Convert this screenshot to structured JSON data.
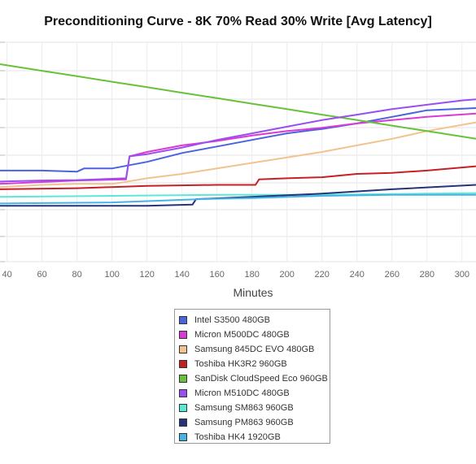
{
  "chart_data": {
    "type": "line",
    "title": "Preconditioning Curve - 8K 70% Read 30% Write [Avg Latency]",
    "xlabel": "Minutes",
    "ylabel": "",
    "xlim": [
      36,
      308
    ],
    "x_ticks": [
      40,
      60,
      80,
      100,
      120,
      140,
      160,
      180,
      200,
      220,
      240,
      260,
      280,
      300
    ],
    "ylim": [
      0,
      10
    ],
    "grid": true,
    "legend_position": "bottom-center",
    "series": [
      {
        "name": "Intel S3500 480GB",
        "color": "#4a63e0",
        "points": [
          [
            36,
            4.15
          ],
          [
            60,
            4.15
          ],
          [
            80,
            4.1
          ],
          [
            84,
            4.25
          ],
          [
            100,
            4.25
          ],
          [
            120,
            4.55
          ],
          [
            140,
            4.95
          ],
          [
            160,
            5.25
          ],
          [
            180,
            5.55
          ],
          [
            200,
            5.85
          ],
          [
            220,
            6.05
          ],
          [
            240,
            6.3
          ],
          [
            260,
            6.6
          ],
          [
            280,
            6.9
          ],
          [
            308,
            7.0
          ]
        ]
      },
      {
        "name": "Micron M500DC 480GB",
        "color": "#d93ad4",
        "points": [
          [
            36,
            3.55
          ],
          [
            80,
            3.7
          ],
          [
            108,
            3.75
          ],
          [
            110,
            4.8
          ],
          [
            120,
            5.0
          ],
          [
            140,
            5.3
          ],
          [
            160,
            5.5
          ],
          [
            180,
            5.75
          ],
          [
            200,
            5.95
          ],
          [
            220,
            6.1
          ],
          [
            240,
            6.3
          ],
          [
            260,
            6.45
          ],
          [
            280,
            6.6
          ],
          [
            308,
            6.75
          ]
        ]
      },
      {
        "name": "Samsung 845DC EVO 480GB",
        "color": "#f2c38e",
        "points": [
          [
            36,
            3.4
          ],
          [
            60,
            3.5
          ],
          [
            80,
            3.55
          ],
          [
            100,
            3.55
          ],
          [
            105,
            3.6
          ],
          [
            120,
            3.8
          ],
          [
            140,
            4.0
          ],
          [
            160,
            4.25
          ],
          [
            180,
            4.5
          ],
          [
            200,
            4.75
          ],
          [
            220,
            5.0
          ],
          [
            240,
            5.3
          ],
          [
            260,
            5.6
          ],
          [
            280,
            5.95
          ],
          [
            308,
            6.35
          ]
        ]
      },
      {
        "name": "Toshiba HK3R2 960GB",
        "color": "#c62026",
        "points": [
          [
            36,
            3.3
          ],
          [
            80,
            3.35
          ],
          [
            100,
            3.4
          ],
          [
            120,
            3.45
          ],
          [
            160,
            3.5
          ],
          [
            182,
            3.5
          ],
          [
            184,
            3.75
          ],
          [
            200,
            3.8
          ],
          [
            220,
            3.85
          ],
          [
            240,
            4.0
          ],
          [
            260,
            4.05
          ],
          [
            280,
            4.15
          ],
          [
            308,
            4.35
          ]
        ]
      },
      {
        "name": "SanDisk CloudSpeed Eco 960GB",
        "color": "#67c23a",
        "points": [
          [
            36,
            9.0
          ],
          [
            60,
            8.7
          ],
          [
            80,
            8.45
          ],
          [
            100,
            8.2
          ],
          [
            120,
            7.95
          ],
          [
            140,
            7.7
          ],
          [
            160,
            7.45
          ],
          [
            180,
            7.2
          ],
          [
            200,
            6.95
          ],
          [
            220,
            6.7
          ],
          [
            240,
            6.45
          ],
          [
            260,
            6.2
          ],
          [
            280,
            5.95
          ],
          [
            308,
            5.6
          ]
        ]
      },
      {
        "name": "Micron M510DC 480GB",
        "color": "#9b4ef0",
        "points": [
          [
            36,
            3.65
          ],
          [
            60,
            3.7
          ],
          [
            80,
            3.72
          ],
          [
            108,
            3.8
          ],
          [
            110,
            4.8
          ],
          [
            120,
            4.9
          ],
          [
            140,
            5.2
          ],
          [
            160,
            5.55
          ],
          [
            180,
            5.85
          ],
          [
            200,
            6.15
          ],
          [
            220,
            6.45
          ],
          [
            240,
            6.7
          ],
          [
            260,
            6.95
          ],
          [
            280,
            7.15
          ],
          [
            300,
            7.35
          ],
          [
            308,
            7.4
          ]
        ]
      },
      {
        "name": "Samsung SM863 960GB",
        "color": "#5ce8d6",
        "points": [
          [
            36,
            2.95
          ],
          [
            100,
            3.0
          ],
          [
            160,
            3.05
          ],
          [
            220,
            3.05
          ],
          [
            280,
            3.1
          ],
          [
            308,
            3.12
          ]
        ]
      },
      {
        "name": "Samsung PM863 960GB",
        "color": "#25337a",
        "points": [
          [
            36,
            2.55
          ],
          [
            80,
            2.55
          ],
          [
            120,
            2.55
          ],
          [
            146,
            2.6
          ],
          [
            148,
            2.85
          ],
          [
            180,
            2.95
          ],
          [
            220,
            3.1
          ],
          [
            260,
            3.3
          ],
          [
            308,
            3.5
          ]
        ]
      },
      {
        "name": "Toshiba HK4 1920GB",
        "color": "#46b3e6",
        "points": [
          [
            36,
            2.65
          ],
          [
            100,
            2.7
          ],
          [
            150,
            2.85
          ],
          [
            180,
            2.9
          ],
          [
            220,
            3.0
          ],
          [
            260,
            3.05
          ],
          [
            308,
            3.05
          ]
        ]
      }
    ]
  }
}
